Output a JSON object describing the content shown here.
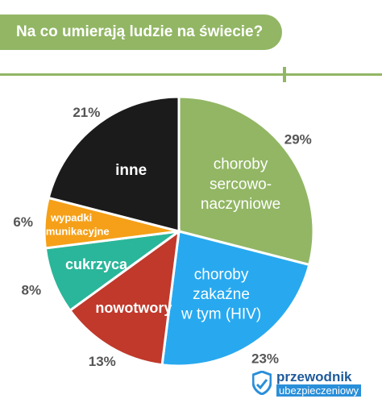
{
  "header": {
    "title": "Na co umierają ludzie na świecie?"
  },
  "brand": {
    "line1": "przewodnik",
    "line2": "ubezpieczeniowy"
  },
  "chart_data": {
    "type": "pie",
    "title": "Na co umierają ludzie na świecie?",
    "slices": [
      {
        "label": [
          "choroby",
          "sercowo-",
          "naczyniowe"
        ],
        "percent_label": "29%",
        "value": 29,
        "color": "#92b664"
      },
      {
        "label": [
          "choroby",
          "zakaźne",
          "w tym (HIV)"
        ],
        "percent_label": "23%",
        "value": 23,
        "color": "#28a9ef"
      },
      {
        "label": [
          "nowotwory"
        ],
        "percent_label": "13%",
        "value": 13,
        "color": "#c0392b"
      },
      {
        "label": [
          "cukrzyca"
        ],
        "percent_label": "8%",
        "value": 8,
        "color": "#2ab69a"
      },
      {
        "label": [
          "wypadki",
          "komunikacyjne"
        ],
        "percent_label": "6%",
        "value": 6,
        "color": "#f5a018"
      },
      {
        "label": [
          "inne"
        ],
        "percent_label": "21%",
        "value": 21,
        "color": "#1b1b1b"
      }
    ],
    "colors": {
      "accent": "#92b664",
      "label_text": "#ffffff",
      "percent_text": "#555555"
    }
  }
}
